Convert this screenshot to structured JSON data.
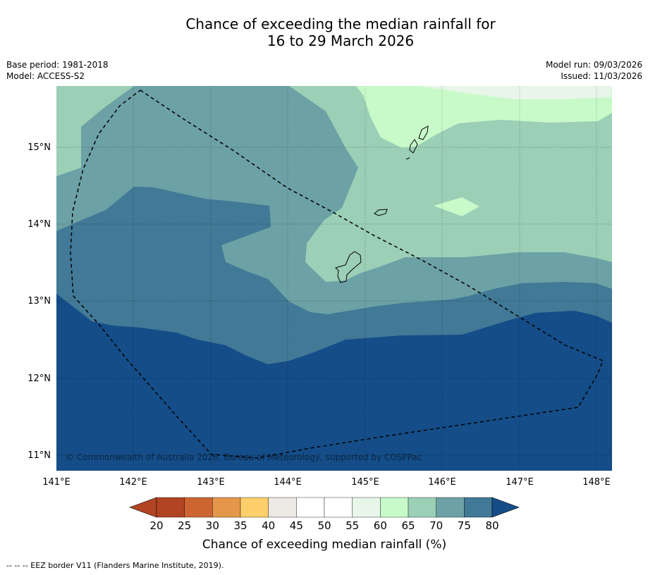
{
  "title": {
    "line1": "Chance of exceeding the median rainfall for",
    "line2": "16 to 29 March 2026"
  },
  "meta": {
    "base_period": "Base period: 1981-2018",
    "model": "Model: ACCESS-S2",
    "model_run": "Model run: 09/03/2026",
    "issued": "Issued: 11/03/2026"
  },
  "map": {
    "lat_labels": [
      "15°N",
      "14°N",
      "13°N",
      "12°N",
      "11°N"
    ],
    "lon_labels": [
      "141°E",
      "142°E",
      "143°E",
      "144°E",
      "145°E",
      "146°E",
      "147°E",
      "148°E"
    ],
    "copyright": "© Commonwealth of Australia 2026, Bureau of Meteorology, supported by COSPPac",
    "colors": {
      "c55_60": "#e8f5e9",
      "c60_65": "#c8fac9",
      "c65_70": "#9bcfb6",
      "c70_75": "#6ca1a5",
      "c75_80": "#417996",
      "c80_plus": "#144d88"
    }
  },
  "colorbar": {
    "ticks": [
      "20",
      "25",
      "30",
      "35",
      "40",
      "45",
      "50",
      "55",
      "60",
      "65",
      "70",
      "75",
      "80"
    ],
    "colors": [
      "#b04423",
      "#b04423",
      "#cd6533",
      "#e4974a",
      "#fdcf6b",
      "#ece8e3",
      "#ffffff",
      "#ffffff",
      "#e8f5e9",
      "#c8fac9",
      "#9bcfb6",
      "#6ca1a5",
      "#417996",
      "#144d88"
    ],
    "label": "Chance of exceeding median rainfall (%)"
  },
  "footer": "--  --  -- EEZ border V11 (Flanders Marine Institute, 2019)."
}
